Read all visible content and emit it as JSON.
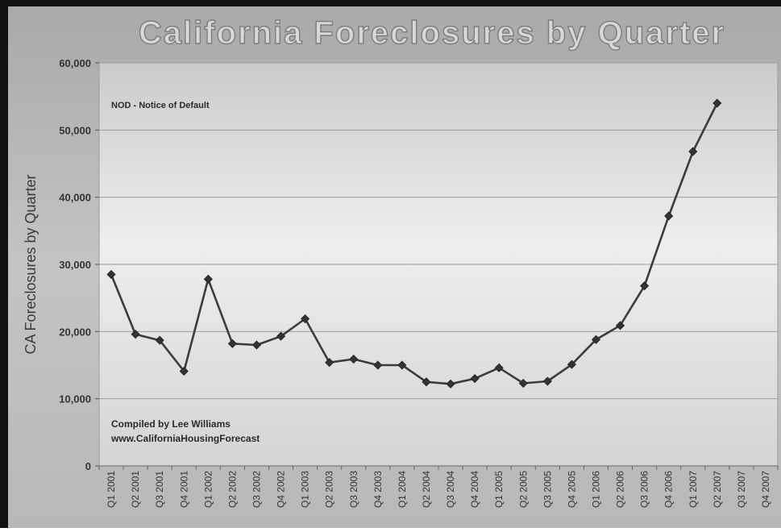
{
  "chart_data": {
    "type": "line",
    "title": "California Foreclosures by Quarter",
    "ylabel": "CA Foreclosures by Quarter",
    "xlabel": "",
    "ylim": [
      0,
      60000
    ],
    "yticks": [
      0,
      10000,
      20000,
      30000,
      40000,
      50000,
      60000
    ],
    "ytick_labels": [
      "0",
      "10,000",
      "20,000",
      "30,000",
      "40,000",
      "50,000",
      "60,000"
    ],
    "grid": true,
    "legend": "none",
    "annotations": [
      "NOD - Notice of Default",
      "Compiled by Lee Williams",
      "www.CaliforniaHousingForecast"
    ],
    "categories": [
      "Q1 2001",
      "Q2 2001",
      "Q3 2001",
      "Q4 2001",
      "Q1 2002",
      "Q2 2002",
      "Q3 2002",
      "Q4 2002",
      "Q1 2003",
      "Q2 2003",
      "Q3 2003",
      "Q4 2003",
      "Q1 2004",
      "Q2 2004",
      "Q3 2004",
      "Q4 2004",
      "Q1 2005",
      "Q2 2005",
      "Q3 2005",
      "Q4 2005",
      "Q1 2006",
      "Q2 2006",
      "Q3 2006",
      "Q4 2006",
      "Q1 2007",
      "Q2 2007",
      "Q3 2007",
      "Q4 2007"
    ],
    "series": [
      {
        "name": "",
        "values": [
          28500,
          19600,
          18700,
          14100,
          27800,
          18200,
          18000,
          19300,
          21900,
          15400,
          15900,
          15000,
          15000,
          12500,
          12200,
          13000,
          14600,
          12300,
          12600,
          15100,
          18800,
          20900,
          26800,
          37200,
          46800,
          54000,
          null,
          null
        ]
      }
    ],
    "colors": {
      "line": "#3c3c3c",
      "marker": "#333333",
      "plot_bg_top": "#cfcfcf",
      "plot_bg_mid": "#ececec",
      "frame_bg": "#b3b3b3",
      "title_fill": "#d6d6d6",
      "title_stroke": "#8a8a8a"
    }
  }
}
